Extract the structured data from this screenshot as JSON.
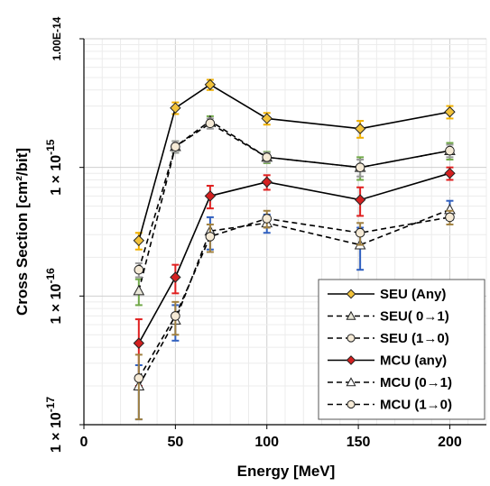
{
  "chart_data": {
    "type": "scatter",
    "xlabel": "Energy [MeV]",
    "ylabel": "Cross Section [cm²/bit]",
    "xlim": [
      0,
      220
    ],
    "ylim": [
      1e-17,
      1e-14
    ],
    "y_scale": "log",
    "grid": "major and minor",
    "legend_position": "bottom-right",
    "x_ticks": [
      "0",
      "50",
      "100",
      "150",
      "200"
    ],
    "x_tick_values": [
      0,
      50,
      100,
      150,
      200
    ],
    "y_ticks": [
      {
        "mantissa": "1 × 10",
        "exp": "-17",
        "value": 1e-17
      },
      {
        "mantissa": "1 × 10",
        "exp": "-16",
        "value": 1e-16
      },
      {
        "mantissa": "1 × 10",
        "exp": "-15",
        "value": 1e-15
      },
      {
        "text": "1.00E-14",
        "value": 1e-14
      }
    ],
    "series": [
      {
        "name": "SEU (Any)",
        "x": [
          30,
          50,
          69,
          100,
          151,
          200
        ],
        "y": [
          2.7e-16,
          2.9e-15,
          4.4e-15,
          2.4e-15,
          2e-15,
          2.7e-15
        ],
        "err_low": [
          4e-17,
          3e-16,
          4e-16,
          2.5e-16,
          3e-16,
          3e-16
        ],
        "err_high": [
          4e-17,
          3e-16,
          4e-16,
          2.5e-16,
          3e-16,
          3e-16
        ],
        "line": "solid",
        "marker": "diamond",
        "marker_fill": "#f2c23a",
        "err_color": "#f0b000"
      },
      {
        "name": "SEU( 0→1)",
        "x": [
          30,
          50,
          69,
          100,
          151,
          200
        ],
        "y": [
          1.1e-16,
          1.45e-15,
          2.3e-15,
          1.2e-15,
          1e-15,
          1.35e-15
        ],
        "err_low": [
          2.5e-17,
          1.5e-16,
          2e-16,
          1.2e-16,
          2e-16,
          2e-16
        ],
        "err_high": [
          2.5e-17,
          1.5e-16,
          2e-16,
          1.2e-16,
          2e-16,
          2e-16
        ],
        "line": "dashed",
        "marker": "triangle",
        "marker_fill": "#e8e6d8",
        "err_color": "#70a848"
      },
      {
        "name": "SEU (1→0)",
        "x": [
          30,
          50,
          69,
          100,
          151,
          200
        ],
        "y": [
          1.6e-16,
          1.45e-15,
          2.2e-15,
          1.2e-15,
          1e-15,
          1.35e-15
        ],
        "err_low": [
          2e-17,
          1.5e-16,
          2e-16,
          1e-16,
          1.5e-16,
          1.5e-16
        ],
        "err_high": [
          2e-17,
          1.5e-16,
          2e-16,
          1e-16,
          1.5e-16,
          1.5e-16
        ],
        "line": "dashed",
        "marker": "circle",
        "marker_fill": "#f5ead6",
        "err_color": "#999999"
      },
      {
        "name": "MCU (any)",
        "x": [
          30,
          50,
          69,
          100,
          151,
          200
        ],
        "y": [
          4.3e-17,
          1.4e-16,
          6e-16,
          7.7e-16,
          5.6e-16,
          9e-16
        ],
        "err_low": [
          2.3e-17,
          3.5e-17,
          1.2e-16,
          1e-16,
          1.4e-16,
          1e-16
        ],
        "err_high": [
          2.3e-17,
          3.5e-17,
          1.2e-16,
          1e-16,
          1.4e-16,
          1e-16
        ],
        "line": "solid",
        "marker": "diamond",
        "marker_fill": "#d42020",
        "err_color": "#e02020"
      },
      {
        "name": "MCU (0→1)",
        "x": [
          30,
          50,
          69,
          100,
          151,
          200
        ],
        "y": [
          2e-17,
          6.5e-17,
          3.2e-16,
          3.7e-16,
          2.5e-16,
          4.7e-16
        ],
        "err_low": [
          9e-18,
          2e-17,
          9e-17,
          6e-17,
          9e-17,
          8e-17
        ],
        "err_high": [
          9e-18,
          2e-17,
          9e-17,
          6e-17,
          9e-17,
          8e-17
        ],
        "line": "dashed",
        "marker": "triangle",
        "marker_fill": "#ffffff",
        "err_color": "#3060c0"
      },
      {
        "name": "MCU (1→0)",
        "x": [
          30,
          50,
          69,
          100,
          151,
          200
        ],
        "y": [
          2.3e-17,
          7e-17,
          2.9e-16,
          4e-16,
          3.1e-16,
          4.1e-16
        ],
        "err_low": [
          1.2e-17,
          2e-17,
          7e-17,
          6e-17,
          6e-17,
          5e-17
        ],
        "err_high": [
          1.2e-17,
          2e-17,
          7e-17,
          6e-17,
          6e-17,
          5e-17
        ],
        "line": "dashed",
        "marker": "circle",
        "marker_fill": "#f5ead6",
        "err_color": "#a08040"
      }
    ]
  }
}
